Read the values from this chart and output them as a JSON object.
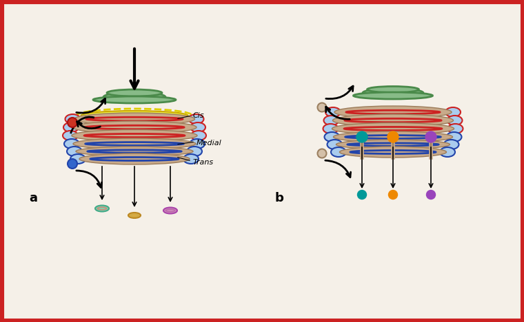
{
  "bg_color": "#f5f0e8",
  "border_color": "#cc2222",
  "border_width": 8,
  "panel_a_label": "a",
  "panel_b_label": "b",
  "label_trans": "Trans",
  "label_medial": "Medial",
  "label_cis": "Cis",
  "golgi_tan": "#c8aa8a",
  "golgi_tan_dark": "#b8967a",
  "golgi_blue_line": "#2244aa",
  "golgi_red_line": "#cc2222",
  "golgi_light_blue": "#aaccee",
  "golgi_green_cis": "#4a8a4a",
  "golgi_green_cis_light": "#88bb88",
  "golgi_yellow": "#ddcc00",
  "vesicle_teal": "#009999",
  "vesicle_orange": "#ee8800",
  "vesicle_purple": "#9944bb",
  "dot_blue": "#3366cc",
  "dot_red": "#cc3322",
  "dot_beige": "#d4c0a8",
  "cisternae_colors_a": [
    "#88ccaa",
    "#ddaa44",
    "#cc88bb"
  ],
  "cisternae_colors_b_top": [
    "#009999",
    "#ee8800",
    "#9944bb"
  ]
}
